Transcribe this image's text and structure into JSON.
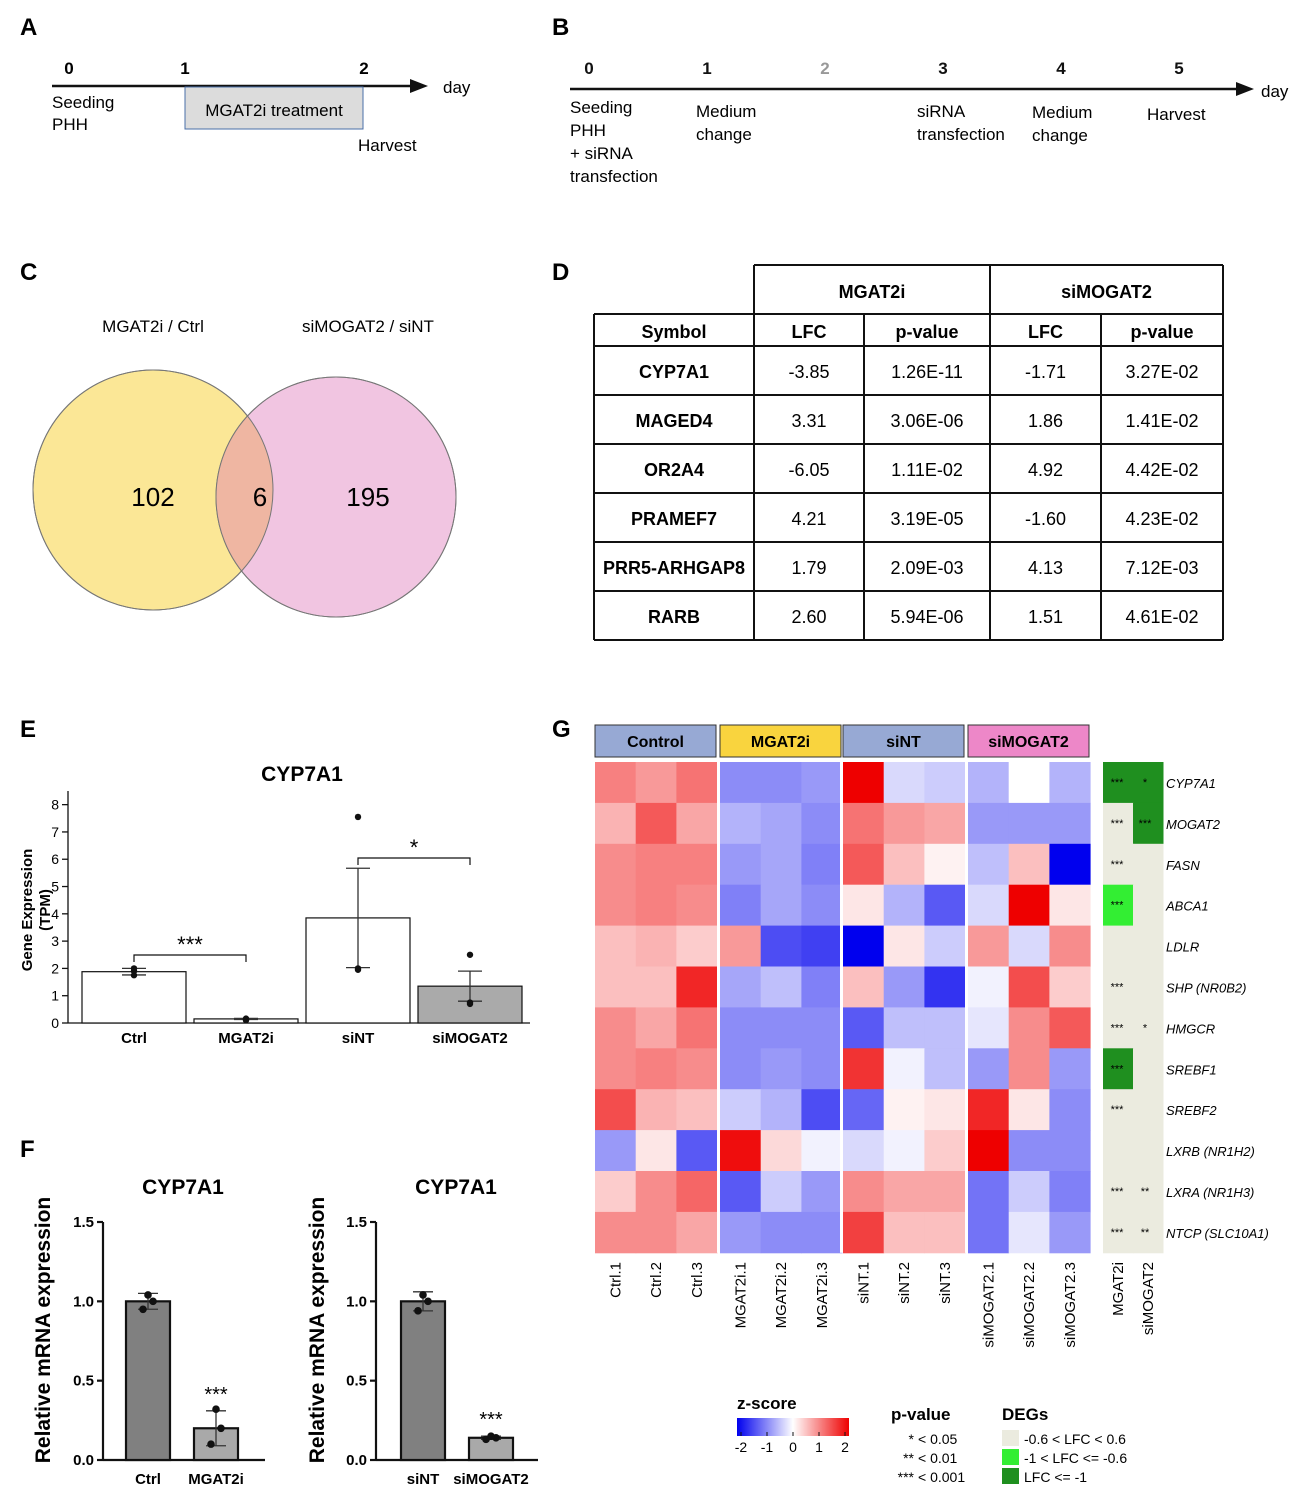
{
  "panel_labels": [
    "A",
    "B",
    "C",
    "D",
    "E",
    "F",
    "G"
  ],
  "panelA": {
    "ticks": [
      "0",
      "1",
      "2"
    ],
    "axis_label": "day",
    "events": [
      "Seeding",
      "PHH"
    ],
    "treatment": "MGAT2i treatment",
    "harvest": "Harvest"
  },
  "panelB": {
    "ticks": [
      "0",
      "1",
      "2",
      "3",
      "4",
      "5"
    ],
    "axis_label": "day",
    "events": [
      [
        "Seeding",
        "PHH",
        "+ siRNA",
        "transfection"
      ],
      [
        "Medium",
        "change"
      ],
      [
        "siRNA",
        "transfection"
      ],
      [
        "Medium",
        "change"
      ],
      [
        "Harvest"
      ]
    ]
  },
  "panelC": {
    "left_label": "MGAT2i / Ctrl",
    "right_label": "siMOGAT2 / siNT",
    "left_only": "102",
    "overlap": "6",
    "right_only": "195",
    "colors": {
      "left": "#fbe796",
      "right": "#f1c5e1",
      "overlap": "#efb6a2"
    }
  },
  "panelD": {
    "groups": [
      "MGAT2i",
      "siMOGAT2"
    ],
    "headers": [
      "Symbol",
      "LFC",
      "p-value",
      "LFC",
      "p-value"
    ],
    "rows": [
      [
        "CYP7A1",
        "-3.85",
        "1.26E-11",
        "-1.71",
        "3.27E-02"
      ],
      [
        "MAGED4",
        "3.31",
        "3.06E-06",
        "1.86",
        "1.41E-02"
      ],
      [
        "OR2A4",
        "-6.05",
        "1.11E-02",
        "4.92",
        "4.42E-02"
      ],
      [
        "PRAMEF7",
        "4.21",
        "3.19E-05",
        "-1.60",
        "4.23E-02"
      ],
      [
        "PRR5-ARHGAP8",
        "1.79",
        "2.09E-03",
        "4.13",
        "7.12E-03"
      ],
      [
        "RARB",
        "2.60",
        "5.94E-06",
        "1.51",
        "4.61E-02"
      ]
    ]
  },
  "chart_data": [
    {
      "id": "E",
      "type": "bar",
      "title": "CYP7A1",
      "ylabel": "Gene Expression (TPM)",
      "ylabel_lines": [
        "Gene Expression",
        "(TPM)"
      ],
      "categories": [
        "Ctrl",
        "MGAT2i",
        "siNT",
        "siMOGAT2"
      ],
      "values": [
        1.88,
        0.15,
        3.85,
        1.35
      ],
      "errors": [
        0.12,
        0.02,
        1.82,
        0.55
      ],
      "points": [
        [
          1.75,
          1.9,
          2.0
        ],
        [
          0.1,
          0.14,
          0.16
        ],
        [
          1.95,
          2.0,
          7.55
        ],
        [
          0.7,
          0.75,
          2.5
        ]
      ],
      "bar_colors": [
        "#ffffff",
        "#ffffff",
        "#ffffff",
        "#aaaaaa"
      ],
      "ylim": [
        0,
        8.5
      ],
      "yticks": [
        "0",
        "1",
        "2",
        "3",
        "4",
        "5",
        "6",
        "7",
        "8"
      ],
      "significance": [
        {
          "from": "Ctrl",
          "to": "MGAT2i",
          "label": "***"
        },
        {
          "from": "siNT",
          "to": "siMOGAT2",
          "label": "*"
        }
      ]
    },
    {
      "id": "F-left",
      "type": "bar",
      "title": "CYP7A1",
      "ylabel": "Relative mRNA expression",
      "categories": [
        "Ctrl",
        "MGAT2i"
      ],
      "values": [
        1.0,
        0.2
      ],
      "errors": [
        0.05,
        0.11
      ],
      "points": [
        [
          0.95,
          1.0,
          1.04
        ],
        [
          0.1,
          0.2,
          0.32
        ]
      ],
      "bar_colors": [
        "#808080",
        "#a9a9a9"
      ],
      "ylim": [
        0,
        1.5
      ],
      "yticks": [
        "0.0",
        "0.5",
        "1.0",
        "1.5"
      ],
      "significance": [
        {
          "at": "MGAT2i",
          "label": "***"
        }
      ]
    },
    {
      "id": "F-right",
      "type": "bar",
      "title": "CYP7A1",
      "ylabel": "Relative mRNA expression",
      "categories": [
        "siNT",
        "siMOGAT2"
      ],
      "values": [
        1.0,
        0.14
      ],
      "errors": [
        0.06,
        0.01
      ],
      "points": [
        [
          0.94,
          1.0,
          1.04
        ],
        [
          0.13,
          0.14,
          0.15
        ]
      ],
      "bar_colors": [
        "#808080",
        "#a9a9a9"
      ],
      "ylim": [
        0,
        1.5
      ],
      "yticks": [
        "0.0",
        "0.5",
        "1.0",
        "1.5"
      ],
      "significance": [
        {
          "at": "siMOGAT2",
          "label": "***"
        }
      ]
    },
    {
      "id": "G",
      "type": "heatmap",
      "group_headers": [
        {
          "label": "Control",
          "color": "#97a9d4"
        },
        {
          "label": "MGAT2i",
          "color": "#f9d43e"
        },
        {
          "label": "siNT",
          "color": "#97a9d4"
        },
        {
          "label": "siMOGAT2",
          "color": "#ed87c8"
        }
      ],
      "columns": [
        "Ctrl.1",
        "Ctrl.2",
        "Ctrl.3",
        "MGAT2i.1",
        "MGAT2i.2",
        "MGAT2i.3",
        "siNT.1",
        "siNT.2",
        "siNT.3",
        "siMOGAT2.1",
        "siMOGAT2.2",
        "siMOGAT2.3"
      ],
      "rows": [
        "CYP7A1",
        "MOGAT2",
        "FASN",
        "ABCA1",
        "LDLR",
        "SHP (NR0B2)",
        "HMGCR",
        "SREBF1",
        "SREBF2",
        "LXRB (NR1H2)",
        "LXRA (NR1H3)",
        "NTCP (SLC10A1)"
      ],
      "z": [
        [
          1.0,
          0.8,
          1.1,
          -0.9,
          -0.9,
          -0.8,
          2.0,
          -0.3,
          -0.4,
          -0.6,
          0.0,
          -0.6
        ],
        [
          0.6,
          1.3,
          0.7,
          -0.6,
          -0.7,
          -0.9,
          1.1,
          0.8,
          0.7,
          -0.8,
          -0.8,
          -0.8
        ],
        [
          0.9,
          1.0,
          1.0,
          -0.8,
          -0.7,
          -1.0,
          1.3,
          0.5,
          0.1,
          -0.5,
          0.5,
          -2.0
        ],
        [
          0.9,
          1.0,
          0.9,
          -1.0,
          -0.7,
          -0.9,
          0.2,
          -0.6,
          -1.3,
          -0.3,
          2.0,
          0.2
        ],
        [
          0.5,
          0.6,
          0.4,
          0.8,
          -1.4,
          -1.5,
          -2.0,
          0.2,
          -0.4,
          0.8,
          -0.3,
          0.9
        ],
        [
          0.5,
          0.5,
          1.7,
          -0.7,
          -0.5,
          -1.0,
          0.5,
          -0.8,
          -1.6,
          -0.1,
          1.4,
          0.4
        ],
        [
          0.9,
          0.7,
          1.1,
          -0.9,
          -0.9,
          -0.9,
          -1.3,
          -0.5,
          -0.5,
          -0.2,
          0.9,
          1.3
        ],
        [
          0.9,
          1.0,
          0.9,
          -0.9,
          -0.8,
          -0.9,
          1.6,
          -0.1,
          -0.5,
          -0.8,
          0.9,
          -0.8
        ],
        [
          1.4,
          0.6,
          0.5,
          -0.4,
          -0.6,
          -1.4,
          -1.2,
          0.1,
          0.2,
          1.7,
          0.2,
          -0.9
        ],
        [
          -0.8,
          0.2,
          -1.3,
          1.9,
          0.3,
          -0.1,
          -0.3,
          -0.1,
          0.4,
          2.0,
          -0.9,
          -0.9
        ],
        [
          0.4,
          0.9,
          1.2,
          -1.3,
          -0.4,
          -0.8,
          0.9,
          0.7,
          0.7,
          -1.1,
          -0.4,
          -1.0
        ],
        [
          0.9,
          0.9,
          0.7,
          -0.8,
          -0.9,
          -0.9,
          1.5,
          0.5,
          0.5,
          -1.1,
          -0.2,
          -0.8
        ]
      ],
      "deg_columns": [
        "MGAT2i",
        "siMOGAT2"
      ],
      "deg_category": [
        [
          "lfc_le_-1",
          "lfc_le_-1"
        ],
        [
          "neutral",
          "lfc_le_-1"
        ],
        [
          "neutral",
          "neutral"
        ],
        [
          "lfc_-1_to_-0.6",
          "neutral"
        ],
        [
          "neutral",
          "neutral"
        ],
        [
          "neutral",
          "neutral"
        ],
        [
          "neutral",
          "neutral"
        ],
        [
          "lfc_le_-1",
          "neutral"
        ],
        [
          "neutral",
          "neutral"
        ],
        [
          "neutral",
          "neutral"
        ],
        [
          "neutral",
          "neutral"
        ],
        [
          "neutral",
          "neutral"
        ]
      ],
      "deg_stars": [
        [
          "***",
          "*"
        ],
        [
          "***",
          "***"
        ],
        [
          "***",
          ""
        ],
        [
          "***",
          ""
        ],
        [
          "",
          ""
        ],
        [
          "***",
          ""
        ],
        [
          "***",
          "*"
        ],
        [
          "***",
          ""
        ],
        [
          "***",
          ""
        ],
        [
          "",
          ""
        ],
        [
          "***",
          "**"
        ],
        [
          "***",
          "**"
        ]
      ],
      "deg_colors": {
        "neutral": "#ebebdf",
        "lfc_-1_to_-0.6": "#33ee33",
        "lfc_le_-1": "#1f8f1f"
      },
      "zscore_legend": {
        "title": "z-score",
        "ticks": [
          "-2",
          "-1",
          "0",
          "1",
          "2"
        ],
        "range": [
          -2,
          2
        ],
        "colors": [
          "#0000ee",
          "#ffffff",
          "#ee0000"
        ]
      },
      "pvalue_legend": {
        "title": "p-value",
        "items": [
          [
            "*",
            "< 0.05"
          ],
          [
            "**",
            "< 0.01"
          ],
          [
            "***",
            "< 0.001"
          ]
        ]
      },
      "deg_legend": {
        "title": "DEGs",
        "items": [
          [
            "neutral",
            "-0.6 < LFC < 0.6"
          ],
          [
            "lfc_-1_to_-0.6",
            "-1 < LFC <= -0.6"
          ],
          [
            "lfc_le_-1",
            "LFC <= -1"
          ]
        ]
      }
    }
  ]
}
